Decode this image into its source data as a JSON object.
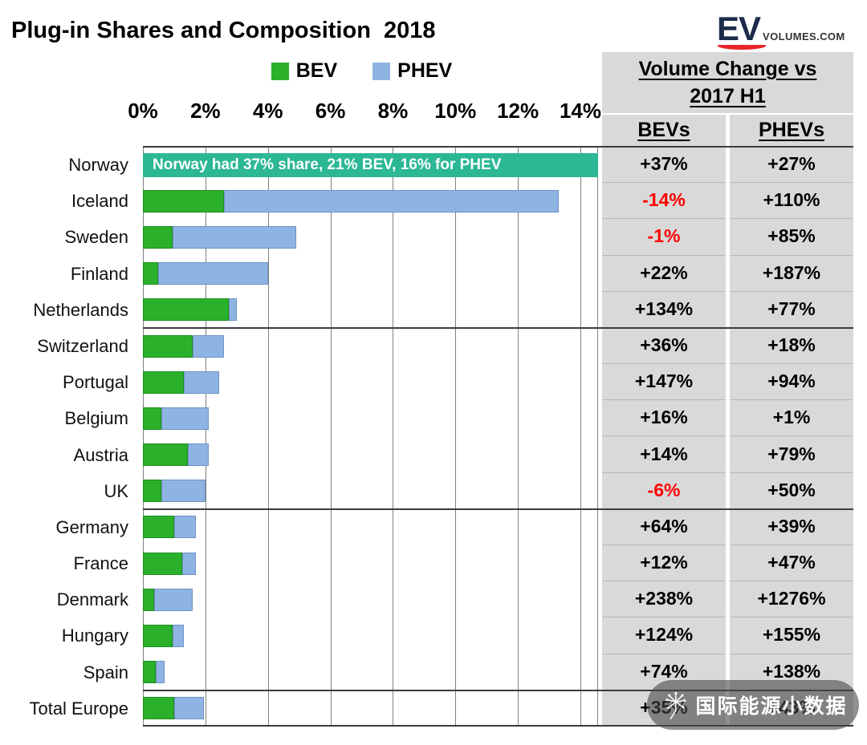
{
  "title": "Plug-in Shares and Composition  2018",
  "logo": {
    "ev": "EV",
    "volumes": "VOLUMES.COM"
  },
  "legend": [
    {
      "label": "BEV",
      "color": "#2bb02b"
    },
    {
      "label": "PHEV",
      "color": "#8eb4e3"
    }
  ],
  "axis": {
    "ticks": [
      "0%",
      "2%",
      "4%",
      "6%",
      "8%",
      "10%",
      "12%",
      "14%"
    ]
  },
  "annotation": {
    "text": "Norway had 37% share, 21% BEV, 16% for PHEV",
    "color": "#2cb795"
  },
  "table": {
    "header_line1": "Volume Change vs",
    "header_line2": "2017 H1",
    "col1": "BEVs",
    "col2": "PHEVs",
    "background": "#d9d9d9",
    "negative_color": "#ff0000"
  },
  "watermark": {
    "text": "国际能源小数据"
  },
  "chart_data": {
    "type": "bar",
    "orientation": "horizontal",
    "stacked": true,
    "title": "Plug-in Shares and Composition 2018",
    "xlabel": "",
    "ylabel": "",
    "x_ticks_pct": [
      0,
      2,
      4,
      6,
      8,
      10,
      12,
      14
    ],
    "xlim_pct": [
      0,
      14.56
    ],
    "grid": "vertical",
    "legend_position": "top",
    "categories": [
      "Norway",
      "Iceland",
      "Sweden",
      "Finland",
      "Netherlands",
      "Switzerland",
      "Portugal",
      "Belgium",
      "Austria",
      "UK",
      "Germany",
      "France",
      "Denmark",
      "Hungary",
      "Spain",
      "Total Europe"
    ],
    "series": [
      {
        "name": "BEV",
        "color": "#2bb02b",
        "values_pct": [
          21,
          2.6,
          0.95,
          0.5,
          2.75,
          1.6,
          1.3,
          0.6,
          1.45,
          0.6,
          1.0,
          1.25,
          0.35,
          0.95,
          0.4,
          1.0
        ]
      },
      {
        "name": "PHEV",
        "color": "#8eb4e3",
        "values_pct": [
          16,
          10.7,
          3.95,
          3.5,
          0.25,
          1.0,
          1.15,
          1.5,
          0.65,
          1.4,
          0.7,
          0.45,
          1.25,
          0.35,
          0.3,
          0.95
        ]
      }
    ],
    "norway_bar_clipped_with_annotation": true,
    "volume_change_vs_2017_h1": {
      "BEVs": [
        "+37%",
        "-14%",
        "-1%",
        "+22%",
        "+134%",
        "+36%",
        "+147%",
        "+16%",
        "+14%",
        "-6%",
        "+64%",
        "+12%",
        "+238%",
        "+124%",
        "+74%",
        "+35%"
      ],
      "PHEVs": [
        "+27%",
        "+110%",
        "+85%",
        "+187%",
        "+77%",
        "+18%",
        "+94%",
        "+1%",
        "+79%",
        "+50%",
        "+39%",
        "+47%",
        "+1276%",
        "+155%",
        "+138%",
        "+43%"
      ]
    },
    "group_separators_after": [
      "Netherlands",
      "UK",
      "Spain"
    ]
  }
}
